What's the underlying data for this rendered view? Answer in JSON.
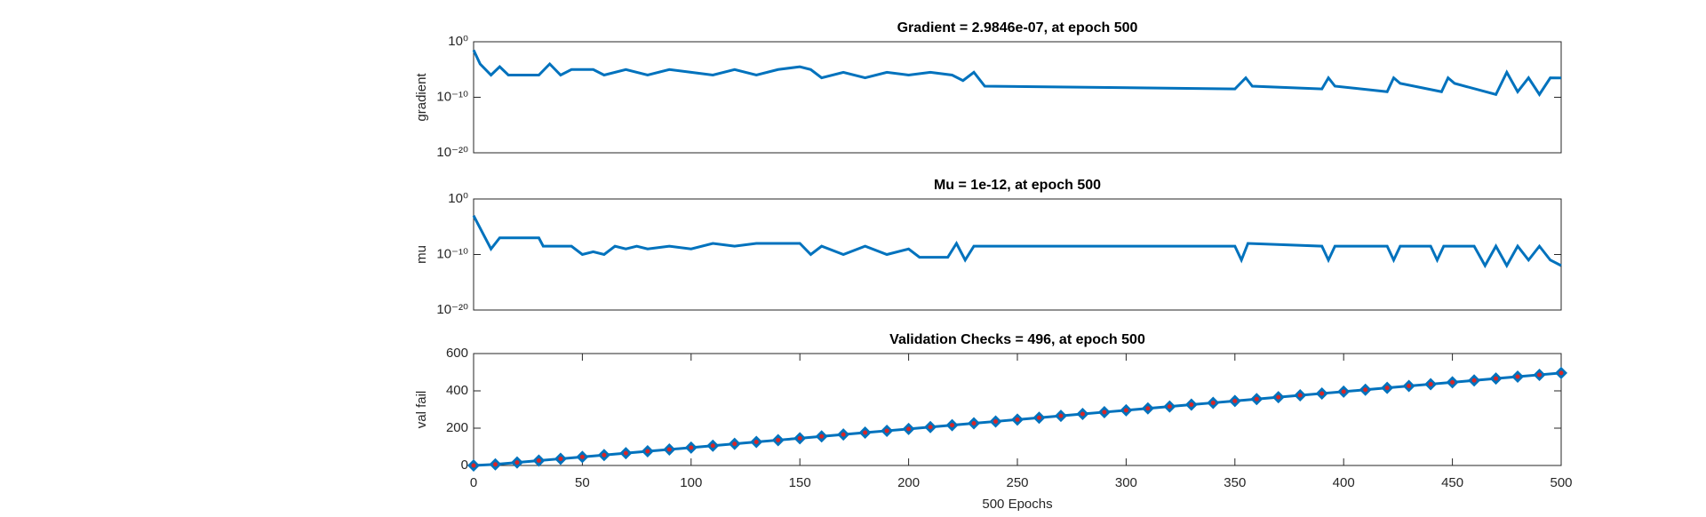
{
  "chart_data": [
    {
      "type": "line",
      "title": "Gradient = 2.9846e-07, at epoch 500",
      "ylabel": "gradient",
      "yscale": "log",
      "xlim": [
        0,
        500
      ],
      "ylim": [
        1e-20,
        1
      ],
      "yticks": [
        {
          "value": 1e-20,
          "label": "10⁻²⁰"
        },
        {
          "value": 1e-10,
          "label": "10⁻¹⁰"
        },
        {
          "value": 1,
          "label": "10⁰"
        }
      ],
      "x": [
        0,
        3,
        8,
        12,
        16,
        30,
        35,
        40,
        45,
        55,
        60,
        70,
        80,
        90,
        100,
        110,
        120,
        130,
        140,
        150,
        155,
        160,
        170,
        180,
        190,
        200,
        210,
        220,
        225,
        230,
        235,
        350,
        355,
        358,
        390,
        393,
        396,
        420,
        423,
        426,
        445,
        448,
        451,
        470,
        475,
        480,
        485,
        490,
        495,
        500
      ],
      "series": [
        {
          "name": "gradient",
          "color": "#0072bd",
          "values": [
            0.0316,
            0.0001,
            1e-06,
            3.16e-05,
            1e-06,
            1e-06,
            0.0001,
            1e-06,
            1e-05,
            1e-05,
            1e-06,
            1e-05,
            1e-06,
            1e-05,
            3.16e-06,
            1e-06,
            1e-05,
            1e-06,
            1e-05,
            3.16e-05,
            1e-05,
            3.16e-07,
            3.16e-06,
            3.16e-07,
            3.16e-06,
            1e-06,
            3.16e-06,
            1e-06,
            1e-07,
            3.16e-06,
            1e-08,
            3.16e-09,
            3.16e-07,
            1e-08,
            3.16e-09,
            3.16e-07,
            1e-08,
            1e-09,
            3.16e-07,
            3.16e-08,
            1e-09,
            3.16e-07,
            3.16e-08,
            3.16e-10,
            3.16e-06,
            1e-09,
            3.16e-07,
            3.16e-10,
            3.16e-07,
            2.9846e-07
          ]
        }
      ]
    },
    {
      "type": "line",
      "title": "Mu = 1e-12, at epoch 500",
      "ylabel": "mu",
      "yscale": "log",
      "xlim": [
        0,
        500
      ],
      "ylim": [
        1e-20,
        1
      ],
      "yticks": [
        {
          "value": 1e-20,
          "label": "10⁻²⁰"
        },
        {
          "value": 1e-10,
          "label": "10⁻¹⁰"
        },
        {
          "value": 1,
          "label": "10⁰"
        }
      ],
      "x": [
        0,
        8,
        12,
        30,
        32,
        45,
        50,
        55,
        60,
        65,
        70,
        75,
        80,
        90,
        100,
        110,
        120,
        130,
        140,
        150,
        155,
        160,
        170,
        180,
        190,
        200,
        205,
        218,
        222,
        226,
        230,
        350,
        353,
        356,
        390,
        393,
        396,
        420,
        423,
        426,
        440,
        443,
        446,
        460,
        465,
        470,
        475,
        480,
        485,
        490,
        495,
        500
      ],
      "series": [
        {
          "name": "mu",
          "color": "#0072bd",
          "values": [
            0.001,
            1e-09,
            1e-07,
            1e-07,
            3.16e-09,
            3.16e-09,
            1e-10,
            3.16e-10,
            1e-10,
            3.16e-09,
            1e-09,
            3.16e-09,
            1e-09,
            3.16e-09,
            1e-09,
            1e-08,
            3.16e-09,
            1e-08,
            1e-08,
            1e-08,
            1e-10,
            3.16e-09,
            1e-10,
            3.16e-09,
            1e-10,
            1e-09,
            3.16e-11,
            3.16e-11,
            1e-08,
            1e-11,
            3.16e-09,
            3.16e-09,
            1e-11,
            1e-08,
            3.16e-09,
            1e-11,
            3.16e-09,
            3.16e-09,
            1e-11,
            3.16e-09,
            3.16e-09,
            1e-11,
            3.16e-09,
            3.16e-09,
            1e-12,
            3.16e-09,
            1e-12,
            3.16e-09,
            1e-11,
            3.16e-09,
            1e-11,
            1e-12
          ]
        }
      ]
    },
    {
      "type": "line-markers",
      "title": "Validation Checks = 496, at epoch 500",
      "ylabel": "val fail",
      "xlabel": "500 Epochs",
      "xlim": [
        0,
        500
      ],
      "ylim": [
        0,
        600
      ],
      "yticks": [
        0,
        200,
        400,
        600
      ],
      "xticks": [
        0,
        50,
        100,
        150,
        200,
        250,
        300,
        350,
        400,
        450,
        500
      ],
      "x": [
        0,
        10,
        20,
        30,
        40,
        50,
        60,
        70,
        80,
        90,
        100,
        110,
        120,
        130,
        140,
        150,
        160,
        170,
        180,
        190,
        200,
        210,
        220,
        230,
        240,
        250,
        260,
        270,
        280,
        290,
        300,
        310,
        320,
        330,
        340,
        350,
        360,
        370,
        380,
        390,
        400,
        410,
        420,
        430,
        440,
        450,
        460,
        470,
        480,
        490,
        500
      ],
      "series": [
        {
          "name": "val fail",
          "color": "#0072bd",
          "marker_color": "#d62728",
          "values": [
            0,
            6,
            16,
            26,
            36,
            46,
            56,
            66,
            76,
            86,
            96,
            106,
            116,
            126,
            136,
            146,
            156,
            166,
            176,
            186,
            196,
            206,
            216,
            226,
            236,
            246,
            256,
            266,
            276,
            286,
            296,
            306,
            316,
            326,
            336,
            346,
            356,
            366,
            376,
            386,
            396,
            406,
            416,
            426,
            436,
            446,
            456,
            466,
            476,
            486,
            496
          ]
        }
      ]
    }
  ]
}
